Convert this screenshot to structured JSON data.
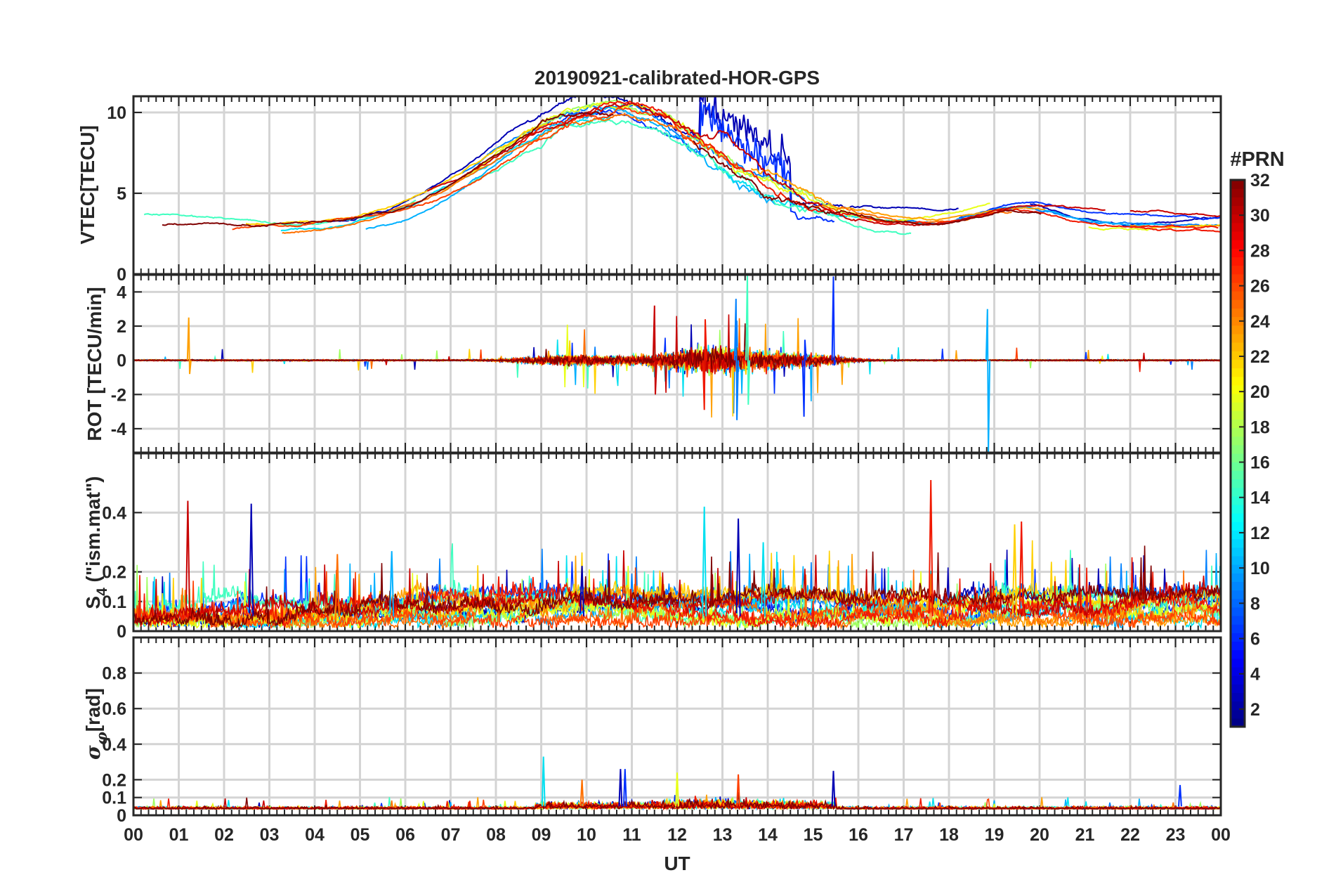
{
  "chart_data": {
    "type": "line",
    "title": "20190921-calibrated-HOR-GPS",
    "xlabel": "UT",
    "xlim": [
      0,
      24
    ],
    "x_tick_labels": [
      "00",
      "01",
      "02",
      "03",
      "04",
      "05",
      "06",
      "07",
      "08",
      "09",
      "10",
      "11",
      "12",
      "13",
      "14",
      "15",
      "16",
      "17",
      "18",
      "19",
      "20",
      "21",
      "22",
      "23",
      "00"
    ],
    "grid": true,
    "series_color_by": "PRN",
    "panels": [
      {
        "id": "vtec",
        "ylabel": "VTEC[TECU]",
        "ylim": [
          0,
          11
        ],
        "yticks": [
          0,
          5,
          10
        ],
        "ytick_labels": [
          "0",
          "5",
          "10"
        ],
        "description_values": {
          "baseline_night_tecu": 3,
          "daytime_peak_tecu": 10.5,
          "peak_time_ut": 10.2
        }
      },
      {
        "id": "rot",
        "ylabel": "ROT [TECU/min]",
        "ylim": [
          -5.4,
          5
        ],
        "yticks": [
          -4,
          -2,
          0,
          2,
          4
        ],
        "ytick_labels": [
          "-4",
          "-2",
          "0",
          "2",
          "4"
        ],
        "description_values": {
          "max_rot": 5,
          "min_rot": -5.4,
          "min_rot_time_ut": 18.85
        }
      },
      {
        "id": "s4",
        "ylabel": "S4 (\"ism.mat\")",
        "ylabel_main": "S",
        "ylabel_sub": "4",
        "ylabel_rest": " (\"ism.mat\")",
        "ylim": [
          0,
          0.6
        ],
        "yticks": [
          0,
          0.1,
          0.2,
          0.4
        ],
        "ytick_labels": [
          "0",
          "0.1",
          "0.2",
          "0.4"
        ],
        "description_values": {
          "max_s4": 0.51,
          "max_s4_time_ut": 17.6
        }
      },
      {
        "id": "sigma_phi",
        "ylabel": "σφ[rad]",
        "ylabel_main": "σ",
        "ylabel_sub": "φ",
        "ylabel_rest": "[rad]",
        "ylim": [
          0,
          1
        ],
        "yticks": [
          0,
          0.1,
          0.2,
          0.4,
          0.6,
          0.8
        ],
        "ytick_labels": [
          "0",
          "0.1",
          "0.2",
          "0.4",
          "0.6",
          "0.8"
        ],
        "description_values": {
          "max_sigma_phi": 0.33,
          "max_sigma_phi_time_ut": 9.05
        }
      }
    ],
    "colorbar": {
      "title": "#PRN",
      "range": [
        1,
        32
      ],
      "ticks": [
        2,
        4,
        6,
        8,
        10,
        12,
        14,
        16,
        18,
        20,
        22,
        24,
        26,
        28,
        30,
        32
      ],
      "tick_labels": [
        "2",
        "4",
        "6",
        "8",
        "10",
        "12",
        "14",
        "16",
        "18",
        "20",
        "22",
        "24",
        "26",
        "28",
        "30",
        "32"
      ],
      "colormap": "jet"
    },
    "prn_colors": {
      "2": "#0000b4",
      "5": "#0030ff",
      "8": "#0080ff",
      "10": "#00b0ff",
      "12": "#00e0f0",
      "14": "#40ffc0",
      "17": "#a0ff60",
      "19": "#e8ff18",
      "21": "#ffd000",
      "23": "#ffa000",
      "25": "#ff7000",
      "27": "#ff4000",
      "28": "#f01800",
      "30": "#c80000",
      "32": "#800000"
    }
  }
}
